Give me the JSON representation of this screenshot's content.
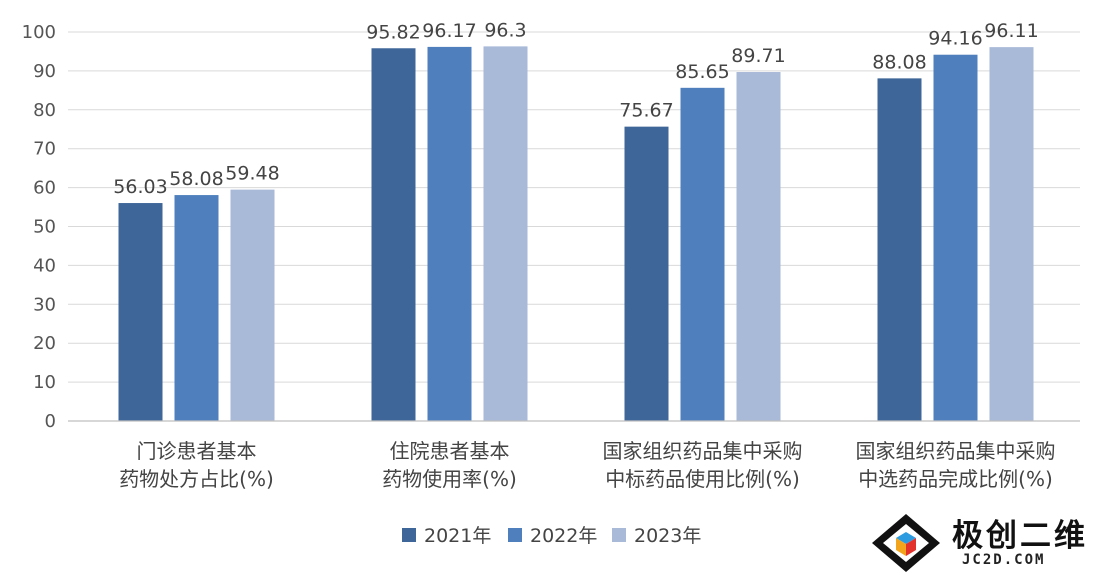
{
  "chart_data": {
    "type": "bar",
    "categories": [
      [
        "门诊患者基本",
        "药物处方占比(%)"
      ],
      [
        "住院患者基本",
        "药物使用率(%)"
      ],
      [
        "国家组织药品集中采购",
        "中标药品使用比例(%)"
      ],
      [
        "国家组织药品集中采购",
        "中选药品完成比例(%)"
      ]
    ],
    "series": [
      {
        "name": "2021年",
        "values": [
          56.03,
          95.82,
          75.67,
          88.08
        ],
        "color": "#3e6699"
      },
      {
        "name": "2022年",
        "values": [
          58.08,
          96.17,
          85.65,
          94.16
        ],
        "color": "#4f7fbd"
      },
      {
        "name": "2023年",
        "values": [
          59.48,
          96.3,
          89.71,
          96.11
        ],
        "color": "#a9b9d8"
      }
    ],
    "data_labels": [
      [
        "56.03",
        "95.82",
        "75.67",
        "88.08"
      ],
      [
        "58.08",
        "96.17",
        "85.65",
        "94.16"
      ],
      [
        "59.48",
        "96.3",
        "89.71",
        "96.11"
      ]
    ],
    "ylim": [
      0,
      100
    ],
    "yticks": [
      0,
      10,
      20,
      30,
      40,
      50,
      60,
      70,
      80,
      90,
      100
    ],
    "grid": true,
    "legend_position": "bottom"
  },
  "watermark": {
    "text": "极创二维",
    "sub": "JC2D.COM"
  }
}
